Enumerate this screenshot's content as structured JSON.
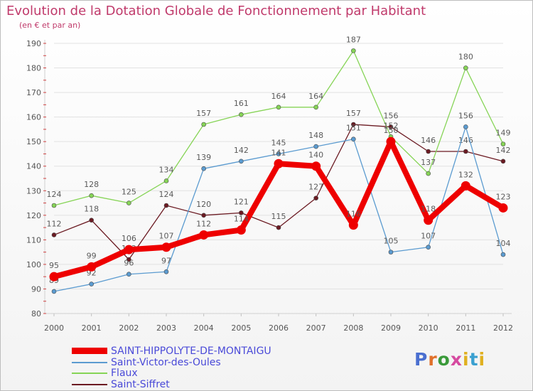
{
  "title": "Evolution de la Dotation Globale de Fonctionnement par Habitant",
  "subtitle": "(en € et par an)",
  "brand": {
    "letters": [
      "P",
      "r",
      "o",
      "x",
      "i",
      "t",
      "i"
    ]
  },
  "chart_data": {
    "type": "line",
    "title": "Evolution de la Dotation Globale de Fonctionnement par Habitant",
    "ylabel": "(en € et par an)",
    "x": [
      2000,
      2001,
      2002,
      2003,
      2004,
      2005,
      2006,
      2007,
      2008,
      2009,
      2010,
      2011,
      2012
    ],
    "ylim": [
      80,
      190
    ],
    "yticks": [
      80,
      90,
      100,
      110,
      120,
      130,
      140,
      150,
      160,
      170,
      180,
      190
    ],
    "series": [
      {
        "name": "Saint-Siffret",
        "color": "#6b1a22",
        "values": [
          112,
          118,
          102,
          124,
          120,
          121,
          115,
          127,
          157,
          156,
          146,
          146,
          142
        ],
        "labels": [
          "112",
          "118",
          "102",
          "124",
          "120",
          "121",
          "115",
          "127",
          "157",
          "156",
          "146",
          "146",
          "142"
        ]
      },
      {
        "name": "Flaux",
        "color": "#86d456",
        "values": [
          124,
          128,
          125,
          134,
          157,
          161,
          164,
          164,
          187,
          152,
          137,
          180,
          149
        ],
        "labels": [
          "124",
          "128",
          "125",
          "134",
          "157",
          "161",
          "164",
          "164",
          "187",
          "152",
          "137",
          "180",
          "149"
        ]
      },
      {
        "name": "Saint-Victor-des-Oules",
        "color": "#5b9bd0",
        "values": [
          89,
          92,
          96,
          97,
          139,
          142,
          145,
          148,
          151,
          105,
          107,
          156,
          104
        ],
        "labels": [
          "89",
          "92",
          "96",
          "97",
          "139",
          "142",
          "145",
          "148",
          "151",
          "105",
          "107",
          "156",
          "104"
        ]
      },
      {
        "name": "SAINT-HIPPOLYTE-DE-MONTAIGU",
        "color": "#ee0000",
        "values": [
          95,
          99,
          106,
          107,
          112,
          114,
          141,
          140,
          116,
          150,
          118,
          132,
          123
        ],
        "labels": [
          "95",
          "99",
          "106",
          "107",
          "112",
          "114",
          "141",
          "140",
          "116",
          "150",
          "118",
          "132",
          "123"
        ]
      }
    ],
    "legend_order": [
      "SAINT-HIPPOLYTE-DE-MONTAIGU",
      "Saint-Victor-des-Oules",
      "Flaux",
      "Saint-Siffret"
    ],
    "legend_position": "bottom-left"
  }
}
